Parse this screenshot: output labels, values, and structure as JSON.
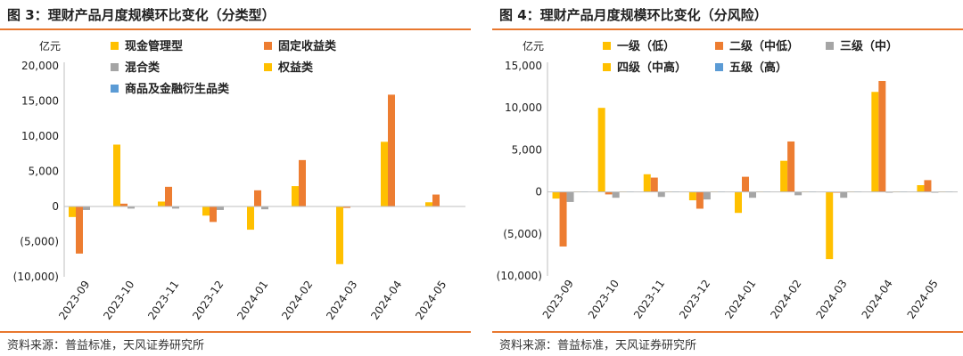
{
  "left_panel": {
    "title": "图 3：理财产品月度规模环比变化（分类型）",
    "source": "资料来源：普益标准，天风证券研究所"
  },
  "right_panel": {
    "title": "图 4：理财产品月度规模环比变化（分风险）",
    "source": "资料来源：普益标准，天风证券研究所"
  },
  "chart_data": [
    {
      "type": "bar",
      "ylabel": "亿元",
      "ylim": [
        -10000,
        20000
      ],
      "yticks": [
        -10000,
        -5000,
        0,
        5000,
        10000,
        15000,
        20000
      ],
      "ytick_labels": [
        "(10,000)",
        "(5,000)",
        "0",
        "5,000",
        "10,000",
        "15,000",
        "20,000"
      ],
      "grid": false,
      "legend_position": "top-left",
      "categories": [
        "2023-09",
        "2023-10",
        "2023-11",
        "2023-12",
        "2024-01",
        "2024-02",
        "2024-03",
        "2024-04",
        "2024-05"
      ],
      "series": [
        {
          "name": "现金管理型",
          "color": "#ffc000",
          "values": [
            -1500,
            8800,
            700,
            -1300,
            -3300,
            2900,
            -8200,
            9200,
            600
          ]
        },
        {
          "name": "固定收益类",
          "color": "#ed7d31",
          "values": [
            -6700,
            400,
            2800,
            -2200,
            2300,
            6600,
            -200,
            15900,
            1700
          ]
        },
        {
          "name": "混合类",
          "color": "#a5a5a5",
          "values": [
            -500,
            -300,
            -300,
            -500,
            -400,
            -100,
            -100,
            -100,
            -100
          ]
        },
        {
          "name": "权益类",
          "color": "#ffc000",
          "values": [
            0,
            0,
            0,
            0,
            0,
            0,
            0,
            0,
            0
          ]
        },
        {
          "name": "商品及金融衍生品类",
          "color": "#5b9bd5",
          "values": [
            0,
            0,
            0,
            0,
            0,
            0,
            0,
            0,
            0
          ]
        }
      ]
    },
    {
      "type": "bar",
      "ylabel": "亿元",
      "ylim": [
        -10000,
        15000
      ],
      "yticks": [
        -10000,
        -5000,
        0,
        5000,
        10000,
        15000
      ],
      "ytick_labels": [
        "(10,000)",
        "(5,000)",
        "0",
        "5,000",
        "10,000",
        "15,000"
      ],
      "grid": false,
      "legend_position": "top",
      "categories": [
        "2023-09",
        "2023-10",
        "2023-11",
        "2023-12",
        "2024-01",
        "2024-02",
        "2024-03",
        "2024-04",
        "2024-05"
      ],
      "series": [
        {
          "name": "一级（低）",
          "color": "#ffc000",
          "values": [
            -800,
            10000,
            2100,
            -1000,
            -2500,
            3700,
            -8000,
            11900,
            800
          ]
        },
        {
          "name": "二级（中低）",
          "color": "#ed7d31",
          "values": [
            -6500,
            -300,
            1700,
            -2000,
            1800,
            6000,
            -100,
            13200,
            1400
          ]
        },
        {
          "name": "三级（中）",
          "color": "#a5a5a5",
          "values": [
            -1200,
            -700,
            -600,
            -900,
            -700,
            -400,
            -700,
            -100,
            -100
          ]
        },
        {
          "name": "四级（中高）",
          "color": "#ffc000",
          "values": [
            0,
            0,
            0,
            0,
            0,
            0,
            0,
            0,
            0
          ]
        },
        {
          "name": "五级（高）",
          "color": "#5b9bd5",
          "values": [
            0,
            0,
            0,
            0,
            0,
            0,
            0,
            0,
            0
          ]
        }
      ]
    }
  ]
}
